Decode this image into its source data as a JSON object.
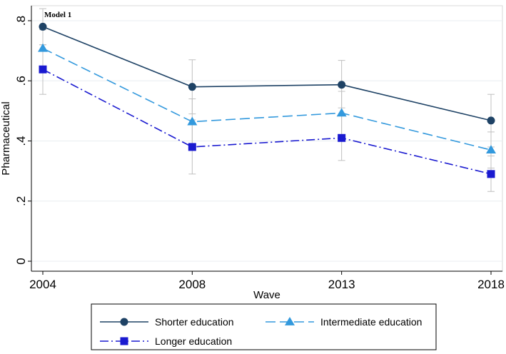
{
  "chart_data": {
    "type": "line",
    "annotation": "Model 1",
    "xlabel": "Wave",
    "ylabel": "Pharmaceutical",
    "x": [
      "2004",
      "2008",
      "2013",
      "2018"
    ],
    "ylim": [
      0,
      0.8
    ],
    "y_ticks": [
      {
        "value": 0,
        "label": "0"
      },
      {
        "value": 0.2,
        "label": ".2"
      },
      {
        "value": 0.4,
        "label": ".4"
      },
      {
        "value": 0.6,
        "label": ".6"
      },
      {
        "value": 0.8,
        "label": ".8"
      }
    ],
    "grid": "horizontal",
    "legend_position": "bottom",
    "series": [
      {
        "name": "Shorter education",
        "color": "#1e4265",
        "marker": "circle",
        "line_style": "solid",
        "values": [
          0.78,
          0.58,
          0.587,
          0.468
        ],
        "ci_low": [
          0.72,
          0.49,
          0.51,
          0.38
        ],
        "ci_high": [
          0.84,
          0.67,
          0.668,
          0.555
        ]
      },
      {
        "name": "Intermediate education",
        "color": "#3399dd",
        "marker": "triangle",
        "line_style": "dashed",
        "values": [
          0.708,
          0.464,
          0.493,
          0.37
        ],
        "ci_low": [
          0.645,
          0.39,
          0.42,
          0.31
        ],
        "ci_high": [
          0.77,
          0.54,
          0.565,
          0.43
        ]
      },
      {
        "name": "Longer education",
        "color": "#1a1ad0",
        "marker": "square",
        "line_style": "dash-dot",
        "values": [
          0.638,
          0.38,
          0.41,
          0.29
        ],
        "ci_low": [
          0.555,
          0.29,
          0.335,
          0.232
        ],
        "ci_high": [
          0.72,
          0.47,
          0.49,
          0.35
        ]
      }
    ]
  }
}
